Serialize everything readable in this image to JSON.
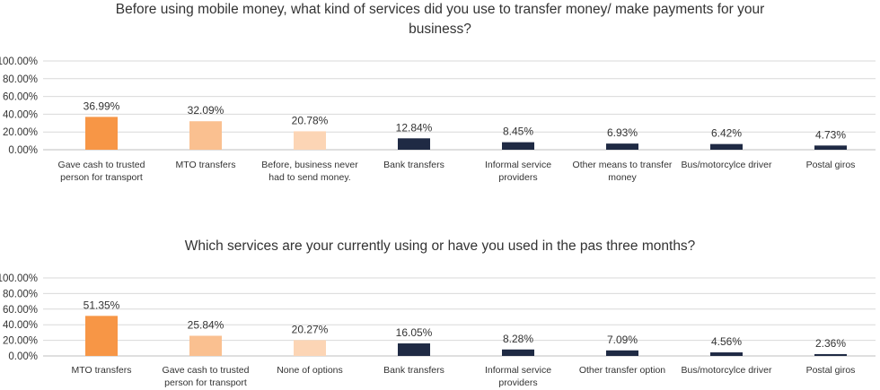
{
  "chart_data": [
    {
      "type": "bar",
      "title": "Before using mobile money, what kind of services did you use to transfer money/ make payments for your business?",
      "xlabel": "",
      "ylabel": "",
      "ylim": [
        0,
        100
      ],
      "ytick_labels": [
        "0.00%",
        "20.00%",
        "40.00%",
        "60.00%",
        "80.00%",
        "100.00%"
      ],
      "grid": true,
      "categories": [
        "Gave cash to trusted person for transport",
        "MTO transfers",
        "Before, business never had to send money.",
        "Bank transfers",
        "Informal service providers",
        "Other means to transfer money",
        "Bus/motorcylce driver",
        "Postal giros"
      ],
      "values": [
        36.99,
        32.09,
        20.78,
        12.84,
        8.45,
        6.93,
        6.42,
        4.73
      ],
      "value_labels": [
        "36.99%",
        "32.09%",
        "20.78%",
        "12.84%",
        "8.45%",
        "6.93%",
        "6.42%",
        "4.73%"
      ],
      "colors": [
        "#F79646",
        "#FAC090",
        "#FCD5B5",
        "#1F2A44",
        "#1F2A44",
        "#1F2A44",
        "#1F2A44",
        "#1F2A44"
      ]
    },
    {
      "type": "bar",
      "title": "Which services are your currently using or have you used in the pas three months?",
      "xlabel": "",
      "ylabel": "",
      "ylim": [
        0,
        100
      ],
      "ytick_labels": [
        "0.00%",
        "20.00%",
        "40.00%",
        "60.00%",
        "80.00%",
        "100.00%"
      ],
      "grid": true,
      "categories": [
        "MTO transfers",
        "Gave cash to trusted person for transport",
        "None of options",
        "Bank transfers",
        "Informal service providers",
        "Other transfer option",
        "Bus/motorcylce driver",
        "Postal giros"
      ],
      "values": [
        51.35,
        25.84,
        20.27,
        16.05,
        8.28,
        7.09,
        4.56,
        2.36
      ],
      "value_labels": [
        "51.35%",
        "25.84%",
        "20.27%",
        "16.05%",
        "8.28%",
        "7.09%",
        "4.56%",
        "2.36%"
      ],
      "colors": [
        "#F79646",
        "#FAC090",
        "#FCD5B5",
        "#1F2A44",
        "#1F2A44",
        "#1F2A44",
        "#1F2A44",
        "#1F2A44"
      ]
    }
  ]
}
